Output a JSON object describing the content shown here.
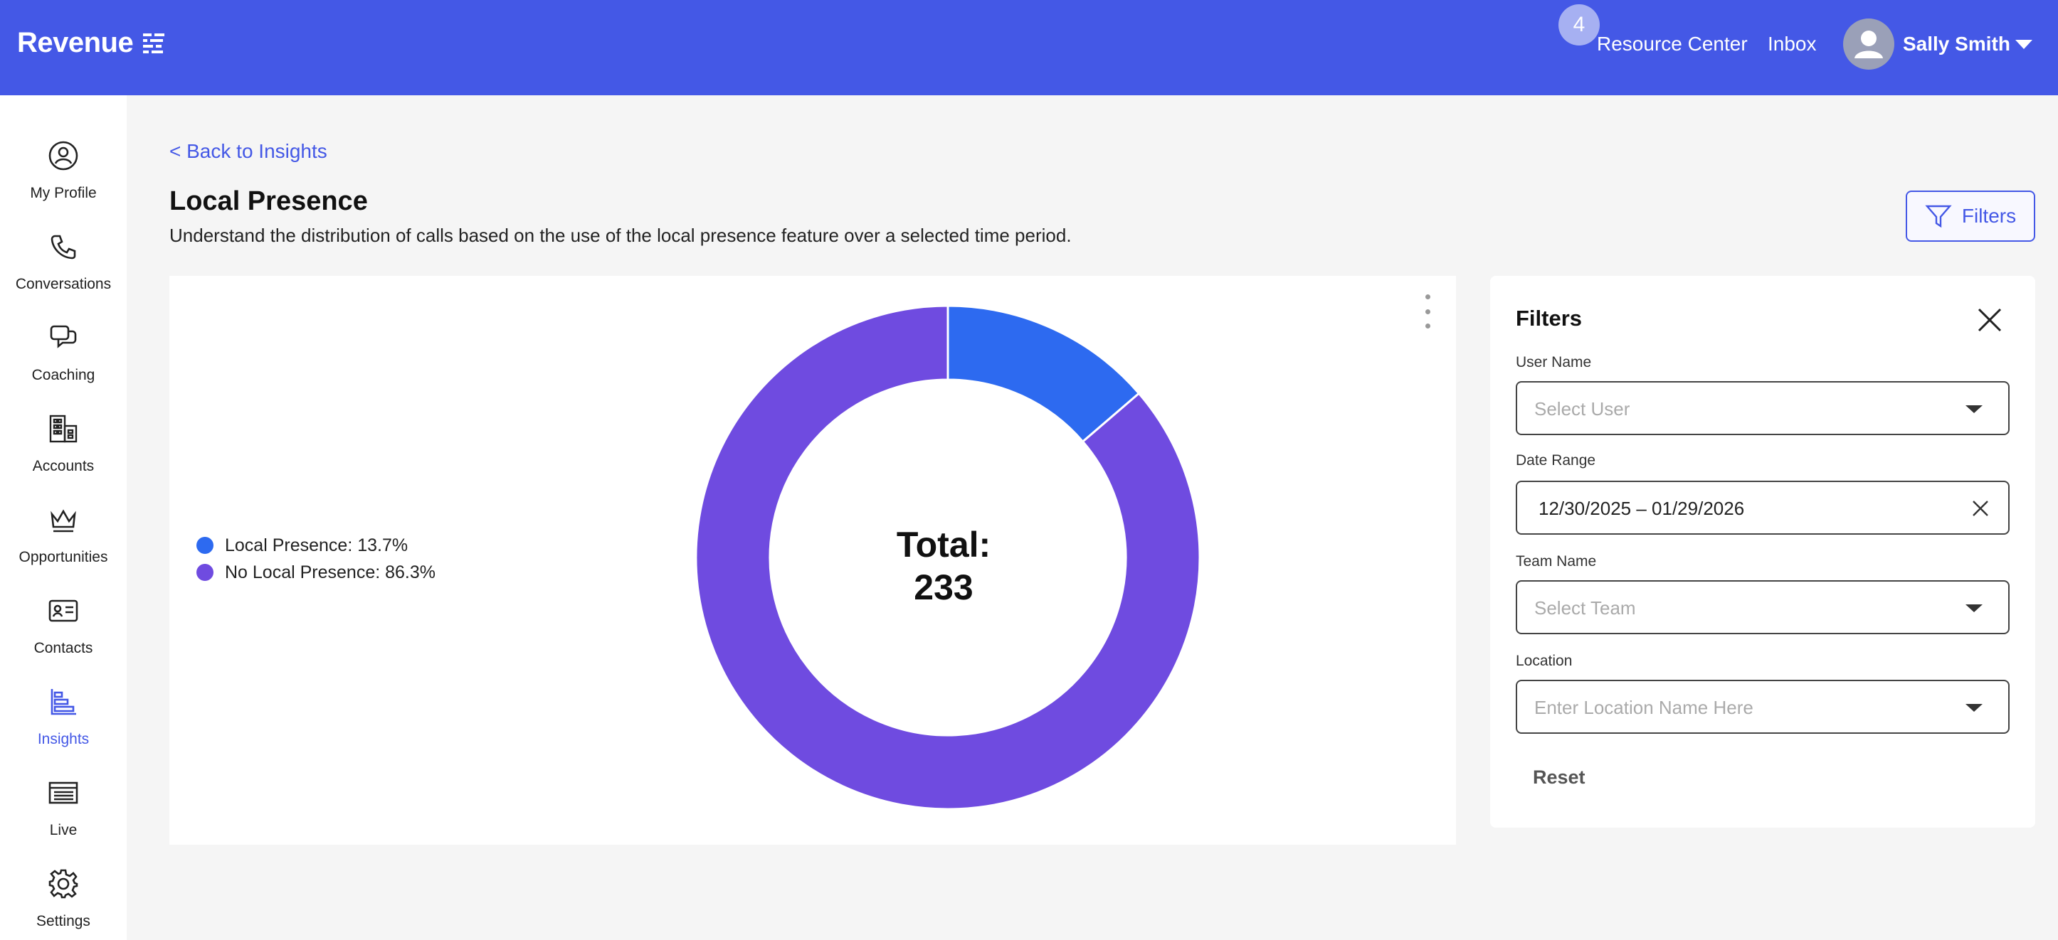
{
  "app": {
    "logo_text": "Revenue"
  },
  "topbar": {
    "notification_count": "4",
    "resource_center": "Resource Center",
    "inbox": "Inbox",
    "user_name": "Sally Smith"
  },
  "sidebar": {
    "items": [
      {
        "label": "My Profile",
        "icon": "user-circle-icon"
      },
      {
        "label": "Conversations",
        "icon": "phone-icon"
      },
      {
        "label": "Coaching",
        "icon": "chat-bubbles-icon"
      },
      {
        "label": "Accounts",
        "icon": "buildings-icon"
      },
      {
        "label": "Opportunities",
        "icon": "crown-icon"
      },
      {
        "label": "Contacts",
        "icon": "contact-card-icon"
      },
      {
        "label": "Insights",
        "icon": "bar-chart-icon",
        "active": true
      },
      {
        "label": "Live",
        "icon": "live-list-icon"
      },
      {
        "label": "Settings",
        "icon": "gear-icon"
      }
    ]
  },
  "page": {
    "back_link": "< Back to Insights",
    "title": "Local Presence",
    "subtitle": "Understand the distribution of calls based on the use of the local presence feature over a selected time period.",
    "filters_button": "Filters"
  },
  "chart_data": {
    "type": "pie",
    "donut": true,
    "center_label": "Total:",
    "center_value": "233",
    "legend_position": "left",
    "slices": [
      {
        "name": "Local Presence",
        "percent": 13.7,
        "color": "#2d6af0",
        "legend": "Local Presence: 13.7%"
      },
      {
        "name": "No Local Presence",
        "percent": 86.3,
        "color": "#6f4be0",
        "legend": "No Local Presence: 86.3%"
      }
    ]
  },
  "filters": {
    "title": "Filters",
    "user_name_label": "User Name",
    "user_name_placeholder": "Select User",
    "date_range_label": "Date Range",
    "date_range_value": "12/30/2025 – 01/29/2026",
    "team_name_label": "Team Name",
    "team_name_placeholder": "Select Team",
    "location_label": "Location",
    "location_placeholder": "Enter Location Name Here",
    "reset_label": "Reset"
  }
}
